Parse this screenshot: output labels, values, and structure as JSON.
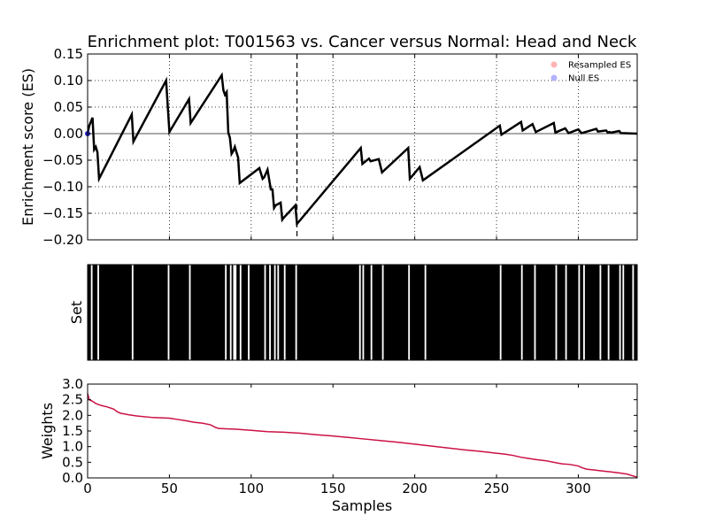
{
  "chart_data": {
    "title": "Enrichment plot: T001563 vs. Cancer versus Normal: Head and Neck",
    "x_label": "Samples",
    "n_samples": 336,
    "x_ticks": [
      0,
      50,
      100,
      150,
      200,
      250,
      300
    ],
    "x_tick_labels": [
      "0",
      "50",
      "100",
      "150",
      "200",
      "250",
      "300"
    ],
    "panels": [
      {
        "type": "line",
        "name": "es",
        "ylabel": "Enrichment score (ES)",
        "ylim": [
          -0.2,
          0.15
        ],
        "y_ticks": [
          0.15,
          0.1,
          0.05,
          0.0,
          -0.05,
          -0.1,
          -0.15,
          -0.2
        ],
        "y_tick_labels": [
          "0.15",
          "0.10",
          "0.05",
          "0.00",
          "−0.05",
          "−0.10",
          "−0.15",
          "−0.20"
        ],
        "grid": true,
        "max_deviation_x": 128,
        "legend": {
          "placement": "top-right",
          "entries": [
            {
              "label": "Resampled ES",
              "color": "#ffb3b3"
            },
            {
              "label": "Null ES",
              "color": "#b3b3ff"
            }
          ]
        },
        "series": [
          {
            "color": "#000000",
            "x": [
              0,
              1,
              3,
              4,
              5,
              6,
              7,
              27,
              28,
              48,
              50,
              62,
              63,
              82,
              83,
              84,
              85,
              86,
              87,
              88,
              89,
              90,
              92,
              93,
              105,
              107,
              108,
              110,
              112,
              113,
              114,
              115,
              118,
              119,
              120,
              127,
              128,
              167,
              168,
              172,
              173,
              178,
              180,
              196,
              197,
              203,
              205,
              252,
              253,
              265,
              266,
              272,
              274,
              285,
              286,
              292,
              294,
              300,
              302,
              311,
              312,
              317,
              318,
              319,
              320,
              325,
              326,
              336
            ],
            "y": [
              0.0,
              0.015,
              0.03,
              -0.03,
              -0.025,
              -0.035,
              -0.085,
              0.036,
              -0.015,
              0.1,
              0.003,
              0.065,
              0.02,
              0.11,
              0.082,
              0.073,
              0.078,
              0.002,
              -0.008,
              -0.038,
              -0.033,
              -0.025,
              -0.045,
              -0.093,
              -0.065,
              -0.085,
              -0.082,
              -0.068,
              -0.105,
              -0.105,
              -0.14,
              -0.135,
              -0.13,
              -0.162,
              -0.158,
              -0.135,
              -0.17,
              -0.027,
              -0.057,
              -0.047,
              -0.052,
              -0.048,
              -0.073,
              -0.027,
              -0.085,
              -0.063,
              -0.088,
              0.015,
              -0.002,
              0.022,
              0.006,
              0.018,
              0.003,
              0.02,
              0.002,
              0.01,
              0.001,
              0.008,
              0.001,
              0.009,
              0.004,
              0.006,
              0.002,
              0.003,
              0.002,
              0.005,
              0.001,
              0.0
            ]
          }
        ],
        "resampled_points": [
          {
            "x": 0,
            "y": 0.0,
            "color": "#2222bb"
          }
        ]
      },
      {
        "type": "barcode",
        "name": "set",
        "ylabel": "Set",
        "white_gaps": [
          {
            "start": 2,
            "end": 3
          },
          {
            "start": 6,
            "end": 7
          },
          {
            "start": 27,
            "end": 28
          },
          {
            "start": 49,
            "end": 50
          },
          {
            "start": 62,
            "end": 63
          },
          {
            "start": 84,
            "end": 85
          },
          {
            "start": 87,
            "end": 88
          },
          {
            "start": 89,
            "end": 91
          },
          {
            "start": 93,
            "end": 94
          },
          {
            "start": 98,
            "end": 99
          },
          {
            "start": 108,
            "end": 109
          },
          {
            "start": 111,
            "end": 112
          },
          {
            "start": 114,
            "end": 115
          },
          {
            "start": 116,
            "end": 117
          },
          {
            "start": 120,
            "end": 121
          },
          {
            "start": 127,
            "end": 128
          },
          {
            "start": 166,
            "end": 167
          },
          {
            "start": 168,
            "end": 169
          },
          {
            "start": 173,
            "end": 174
          },
          {
            "start": 180,
            "end": 181
          },
          {
            "start": 196,
            "end": 197
          },
          {
            "start": 206,
            "end": 207
          },
          {
            "start": 252,
            "end": 253
          },
          {
            "start": 265,
            "end": 266
          },
          {
            "start": 273,
            "end": 274
          },
          {
            "start": 286,
            "end": 287
          },
          {
            "start": 292,
            "end": 293
          },
          {
            "start": 300,
            "end": 301
          },
          {
            "start": 303,
            "end": 304
          },
          {
            "start": 313,
            "end": 314
          },
          {
            "start": 318,
            "end": 319
          },
          {
            "start": 325,
            "end": 326
          },
          {
            "start": 327,
            "end": 328
          },
          {
            "start": 333,
            "end": 334
          }
        ]
      },
      {
        "type": "line",
        "name": "weights",
        "ylabel": "Weights",
        "ylim": [
          0.0,
          3.0
        ],
        "y_ticks": [
          3.0,
          2.5,
          2.0,
          1.5,
          1.0,
          0.5,
          0.0
        ],
        "y_tick_labels": [
          "3.0",
          "2.5",
          "2.0",
          "1.5",
          "1.0",
          "0.5",
          "0.0"
        ],
        "grid": false,
        "series": [
          {
            "color": "#cc1144",
            "x": [
              0,
              1,
              3,
              5,
              8,
              12,
              16,
              18,
              20,
              25,
              30,
              40,
              50,
              55,
              60,
              65,
              70,
              75,
              78,
              80,
              90,
              100,
              110,
              120,
              130,
              140,
              150,
              160,
              170,
              180,
              190,
              200,
              210,
              220,
              230,
              240,
              250,
              255,
              260,
              265,
              270,
              275,
              280,
              285,
              290,
              295,
              300,
              302,
              305,
              310,
              315,
              320,
              325,
              330,
              333,
              335,
              336
            ],
            "y": [
              2.7,
              2.5,
              2.45,
              2.38,
              2.32,
              2.27,
              2.2,
              2.12,
              2.07,
              2.02,
              1.98,
              1.93,
              1.91,
              1.87,
              1.83,
              1.78,
              1.75,
              1.7,
              1.62,
              1.58,
              1.56,
              1.52,
              1.48,
              1.46,
              1.43,
              1.38,
              1.34,
              1.29,
              1.24,
              1.19,
              1.14,
              1.08,
              1.02,
              0.96,
              0.9,
              0.85,
              0.79,
              0.76,
              0.72,
              0.66,
              0.62,
              0.58,
              0.55,
              0.5,
              0.45,
              0.43,
              0.38,
              0.33,
              0.28,
              0.25,
              0.22,
              0.19,
              0.16,
              0.12,
              0.07,
              0.04,
              0.02
            ]
          }
        ]
      }
    ]
  }
}
